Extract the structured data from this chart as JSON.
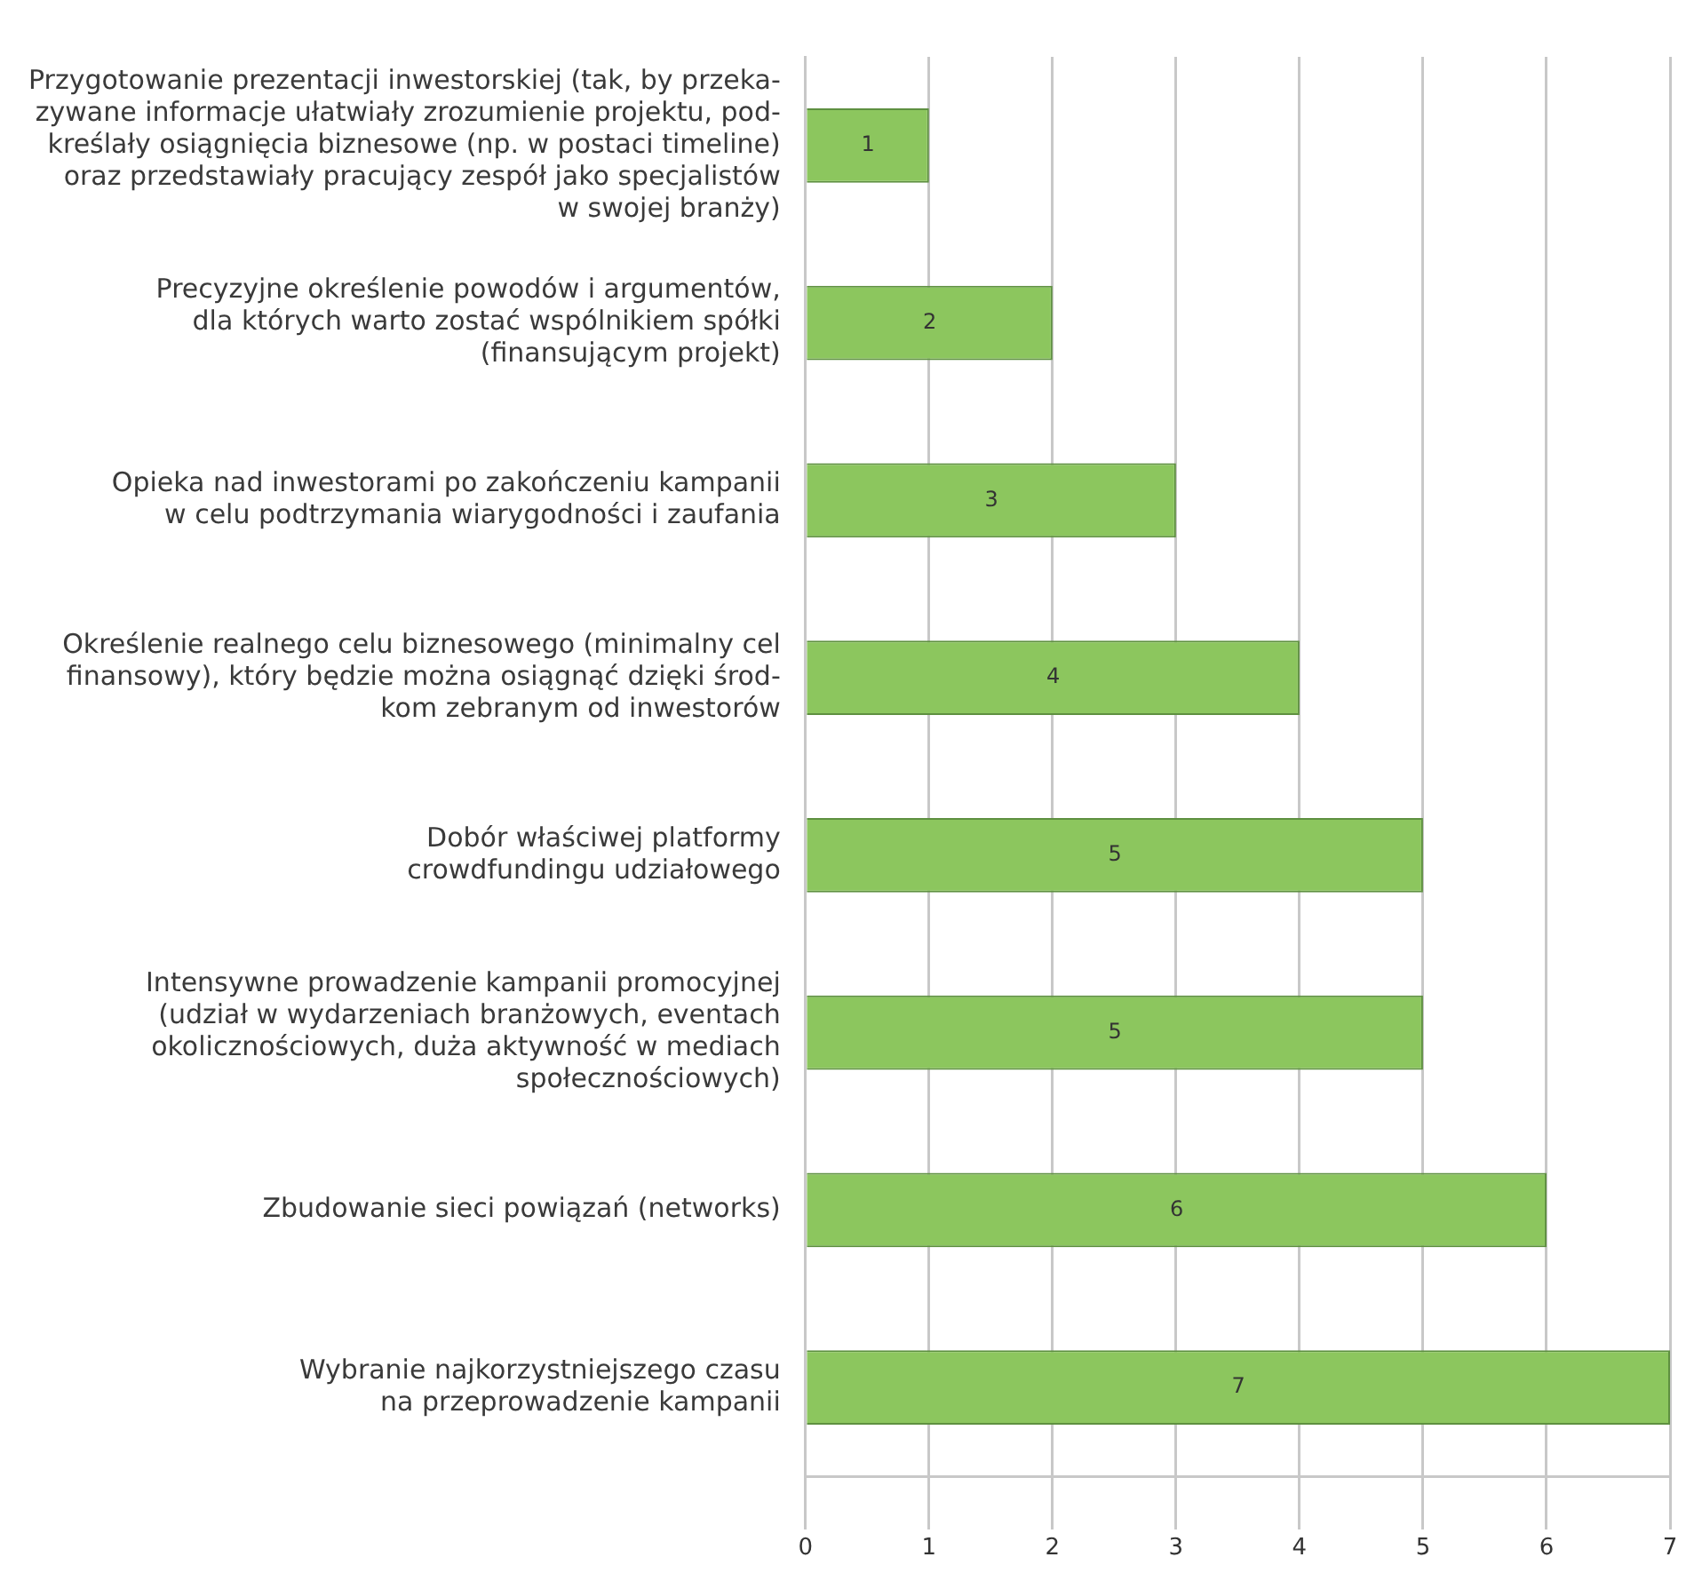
{
  "chart_data": {
    "type": "bar",
    "orientation": "horizontal",
    "categories": [
      "Przygotowanie prezentacji inwestorskiej (tak, by przeka-\nzywane informacje ułatwiały zrozumienie projektu, pod-\nkreślały osiągnięcia biznesowe (np. w postaci timeline)\noraz przedstawiały pracujący zespół jako specjalistów\nw swojej branży)",
      "Precyzyjne określenie powodów i argumentów,\ndla których warto zostać wspólnikiem spółki\n(finansującym projekt)",
      "Opieka nad inwestorami po zakończeniu kampanii\nw celu podtrzymania wiarygodności i zaufania",
      "Określenie realnego celu biznesowego (minimalny cel\nfinansowy), który będzie można osiągnąć dzięki środ-\nkom zebranym od inwestorów",
      "Dobór właściwej platformy\ncrowdfundingu udziałowego",
      "Intensywne prowadzenie kampanii promocyjnej\n(udział w wydarzeniach branżowych, eventach\nokolicznościowych, duża aktywność w mediach\nspołecznościowych)",
      "Zbudowanie sieci powiązań (networks)",
      "Wybranie najkorzystniejszego czasu\nna przeprowadzenie kampanii"
    ],
    "values": [
      1,
      2,
      3,
      4,
      5,
      5,
      6,
      7
    ],
    "color": "#8cc65e",
    "xlim": [
      0,
      7
    ],
    "xticks": [
      0,
      1,
      2,
      3,
      4,
      5,
      6,
      7
    ],
    "grid": "x",
    "data_labels": true,
    "legend": false
  }
}
